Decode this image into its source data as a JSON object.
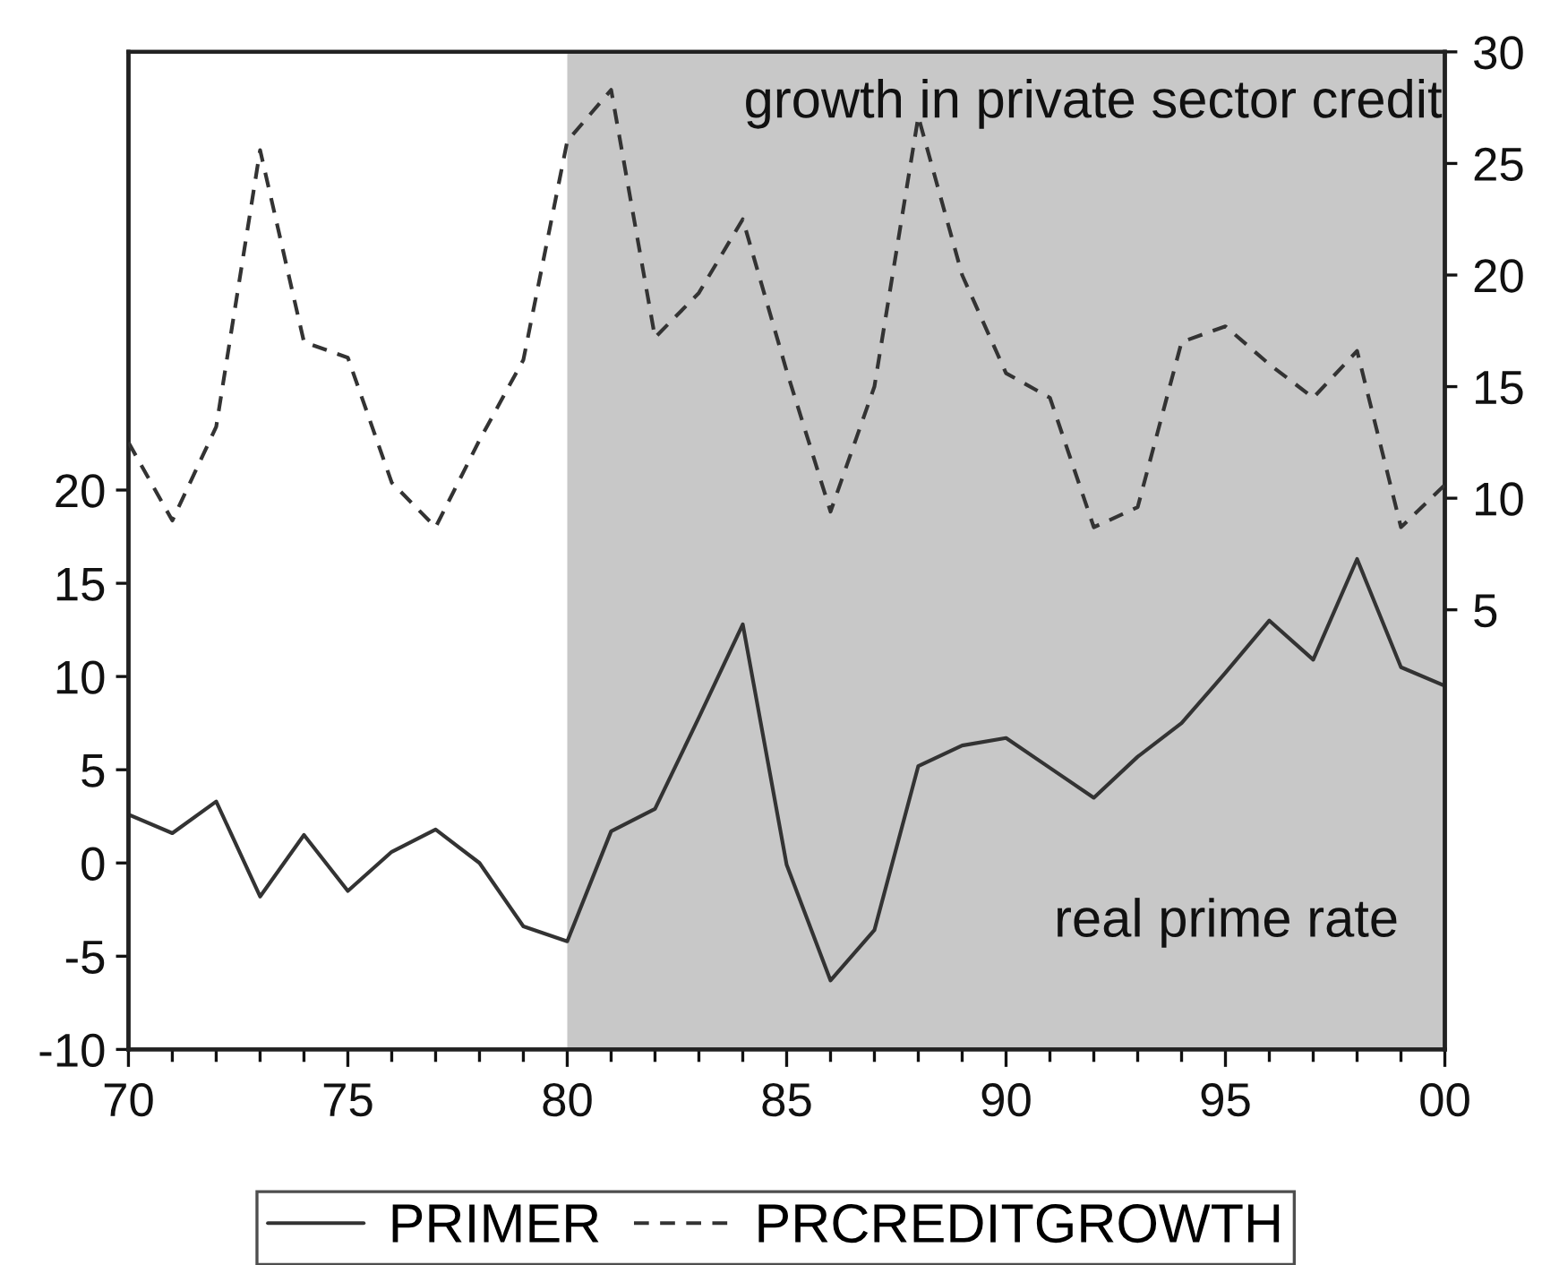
{
  "chart_data": {
    "type": "line",
    "x": [
      1970,
      1971,
      1972,
      1973,
      1974,
      1975,
      1976,
      1977,
      1978,
      1979,
      1980,
      1981,
      1982,
      1983,
      1984,
      1985,
      1986,
      1987,
      1988,
      1989,
      1990,
      1991,
      1992,
      1993,
      1994,
      1995,
      1996,
      1997,
      1998,
      1999,
      2000
    ],
    "xlim": [
      1970,
      2000
    ],
    "xticks": [
      {
        "value": 1970,
        "label": "70"
      },
      {
        "value": 1971,
        "label": null
      },
      {
        "value": 1972,
        "label": null
      },
      {
        "value": 1973,
        "label": null
      },
      {
        "value": 1974,
        "label": null
      },
      {
        "value": 1975,
        "label": "75"
      },
      {
        "value": 1976,
        "label": null
      },
      {
        "value": 1977,
        "label": null
      },
      {
        "value": 1978,
        "label": null
      },
      {
        "value": 1979,
        "label": null
      },
      {
        "value": 1980,
        "label": "80"
      },
      {
        "value": 1981,
        "label": null
      },
      {
        "value": 1982,
        "label": null
      },
      {
        "value": 1983,
        "label": null
      },
      {
        "value": 1984,
        "label": null
      },
      {
        "value": 1985,
        "label": "85"
      },
      {
        "value": 1986,
        "label": null
      },
      {
        "value": 1987,
        "label": null
      },
      {
        "value": 1988,
        "label": null
      },
      {
        "value": 1989,
        "label": null
      },
      {
        "value": 1990,
        "label": "90"
      },
      {
        "value": 1991,
        "label": null
      },
      {
        "value": 1992,
        "label": null
      },
      {
        "value": 1993,
        "label": null
      },
      {
        "value": 1994,
        "label": null
      },
      {
        "value": 1995,
        "label": "95"
      },
      {
        "value": 1996,
        "label": null
      },
      {
        "value": 1997,
        "label": null
      },
      {
        "value": 1998,
        "label": null
      },
      {
        "value": 1999,
        "label": null
      },
      {
        "value": 2000,
        "label": "00"
      }
    ],
    "ylim": [
      -10,
      43.5
    ],
    "yticks": [
      -10,
      -5,
      0,
      5,
      10,
      15,
      20
    ],
    "y2lim": [
      -14.7,
      30
    ],
    "y2ticks": [
      5,
      10,
      15,
      20,
      25,
      30
    ],
    "series": [
      {
        "name": "PRIMER",
        "color": "#333333",
        "line_style": "solid",
        "values": [
          2.6,
          1.6,
          3.3,
          -1.8,
          1.5,
          -1.5,
          0.6,
          1.8,
          0.0,
          -3.4,
          -4.2,
          1.7,
          2.9,
          7.8,
          12.8,
          -0.1,
          -6.3,
          -3.6,
          5.2,
          6.3,
          6.7,
          5.1,
          3.5,
          5.7,
          7.5,
          10.2,
          13.0,
          10.9,
          16.3,
          10.5,
          9.5
        ]
      },
      {
        "name": "PRCREDITGROWTH",
        "color": "#333333",
        "line_style": "dashed",
        "axis": "y2",
        "values": [
          12.5,
          9.0,
          13.2,
          25.6,
          17.0,
          16.3,
          10.7,
          8.7,
          12.6,
          16.2,
          26.0,
          28.3,
          17.2,
          19.2,
          22.5,
          15.7,
          9.4,
          15.0,
          27.1,
          20.0,
          15.6,
          14.5,
          8.7,
          9.6,
          17.0,
          17.7,
          16.0,
          14.5,
          16.6,
          8.7,
          10.6
        ]
      }
    ],
    "bands": [
      {
        "axis": "x",
        "from": 1980,
        "to": 2000,
        "color": "#c8c8c8"
      }
    ],
    "annotations": [
      "growth in private sector credit",
      "real prime rate"
    ],
    "legend": "bottom"
  }
}
